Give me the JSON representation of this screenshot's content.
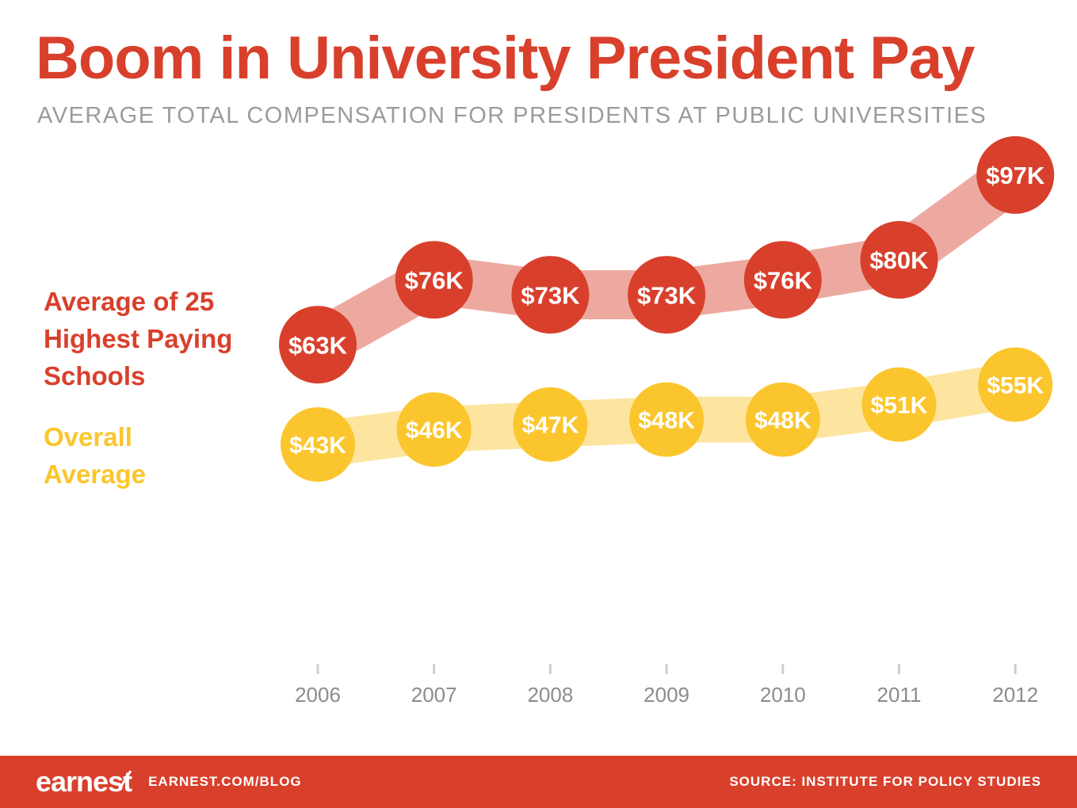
{
  "header": {
    "title": "Boom in University President Pay",
    "subtitle": "AVERAGE TOTAL COMPENSATION FOR PRESIDENTS AT PUBLIC UNIVERSITIES"
  },
  "legend": {
    "highest25_lines": [
      "Average of 25",
      "Highest Paying",
      "Schools"
    ],
    "overall_lines": [
      "Overall",
      "Average"
    ]
  },
  "chart_data": {
    "type": "line",
    "categories": [
      "2006",
      "2007",
      "2008",
      "2009",
      "2010",
      "2011",
      "2012"
    ],
    "series": [
      {
        "key": "highest25",
        "name": "Average of 25 Highest Paying Schools",
        "values": [
          63,
          76,
          73,
          73,
          76,
          80,
          97
        ],
        "labels": [
          "$63K",
          "$76K",
          "$73K",
          "$73K",
          "$76K",
          "$80K",
          "$97K"
        ],
        "color": "#d8402c",
        "band_color": "rgba(216,64,44,0.45)"
      },
      {
        "key": "overall",
        "name": "Overall Average",
        "values": [
          43,
          46,
          47,
          48,
          48,
          51,
          55
        ],
        "labels": [
          "$43K",
          "$46K",
          "$47K",
          "$48K",
          "$48K",
          "$51K",
          "$55K"
        ],
        "color": "#fbc62d",
        "band_color": "rgba(251,198,45,0.45)"
      }
    ],
    "title": "Boom in University President Pay",
    "subtitle": "AVERAGE TOTAL COMPENSATION FOR PRESIDENTS AT PUBLIC UNIVERSITIES",
    "xlabel": "",
    "ylabel": "",
    "value_unit": "K (thousand USD)",
    "legend_position": "left",
    "grid": false
  },
  "footer": {
    "logo": "earnest",
    "blog_url": "EARNEST.COM/BLOG",
    "source": "SOURCE: INSTITUTE FOR POLICY STUDIES"
  },
  "colors": {
    "accent_red": "#d8402c",
    "accent_yellow": "#fbc62d",
    "subtitle_gray": "#9b9b9b",
    "axis_gray": "#8c8c8c",
    "background": "#ffffff",
    "footer_background": "#d8402c"
  }
}
